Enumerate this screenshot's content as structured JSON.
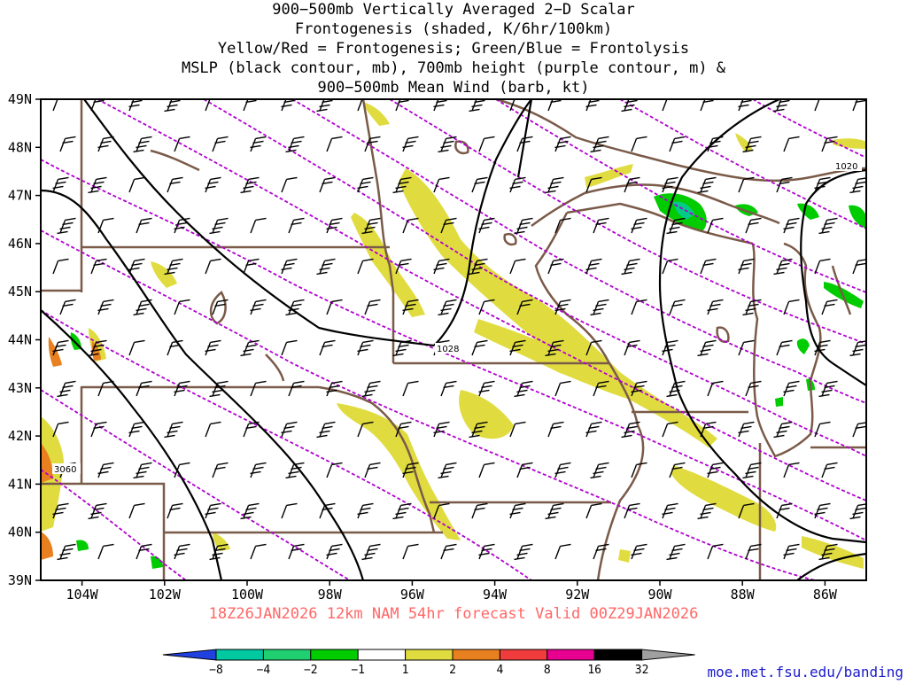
{
  "title_lines": [
    "900−500mb Vertically Averaged 2−D Scalar",
    "Frontogenesis (shaded, K/6hr/100km)",
    "Yellow/Red = Frontogenesis;  Green/Blue = Frontolysis",
    "MSLP (black contour, mb), 700mb height (purple contour, m) &",
    "900−500mb Mean Wind (barb, kt)"
  ],
  "map": {
    "lon_range": [
      -105,
      -85
    ],
    "lat_range": [
      39,
      49
    ],
    "lat_ticks": [
      "39N",
      "40N",
      "41N",
      "42N",
      "43N",
      "44N",
      "45N",
      "46N",
      "47N",
      "48N",
      "49N"
    ],
    "lon_ticks": [
      "104W",
      "102W",
      "100W",
      "98W",
      "96W",
      "94W",
      "92W",
      "90W",
      "88W",
      "86W"
    ],
    "contour_labels": [
      "1028",
      "1020",
      "3060"
    ],
    "colors": {
      "border": "#7a5a48",
      "mslp": "#000000",
      "height": "#b000d0",
      "frontogenesis_weak": "#e0dc40",
      "frontogenesis_strong": "#e8a030",
      "frontolysis_weak": "#00cc00",
      "frontolysis_strong": "#00cc88",
      "barb": "#000000"
    }
  },
  "footer": {
    "run_label": "18Z26JAN2026 12km NAM 54hr forecast Valid 00Z29JAN2026"
  },
  "colorbar": {
    "labels": [
      "−8",
      "−4",
      "−2",
      "−1",
      "1",
      "2",
      "4",
      "8",
      "16",
      "32"
    ],
    "colors": [
      "#2040e0",
      "#00c8a0",
      "#20d070",
      "#00cc00",
      "#ffffff",
      "#e0dc40",
      "#e88020",
      "#f03c3c",
      "#e80090",
      "#000000",
      "#a0a0a0"
    ]
  },
  "source_url": "moe.met.fsu.edu/banding"
}
